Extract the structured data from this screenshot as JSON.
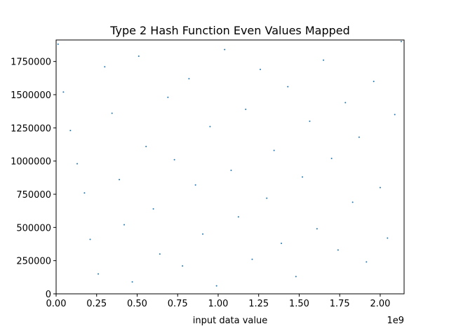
{
  "chart_data": {
    "type": "scatter",
    "title": "Type 2 Hash Function Even Values Mapped",
    "xlabel": "input data value",
    "ylabel": "",
    "x_offset_text": "1e9",
    "xlim": [
      0,
      2147483648
    ],
    "ylim": [
      0,
      1912000
    ],
    "x_ticks": [
      {
        "value": 0,
        "label": "0.00"
      },
      {
        "value": 250000000,
        "label": "0.25"
      },
      {
        "value": 500000000,
        "label": "0.50"
      },
      {
        "value": 750000000,
        "label": "0.75"
      },
      {
        "value": 1000000000,
        "label": "1.00"
      },
      {
        "value": 1250000000,
        "label": "1.25"
      },
      {
        "value": 1500000000,
        "label": "1.50"
      },
      {
        "value": 1750000000,
        "label": "1.75"
      },
      {
        "value": 2000000000,
        "label": "2.00"
      }
    ],
    "y_ticks": [
      {
        "value": 0,
        "label": "0"
      },
      {
        "value": 250000,
        "label": "250000"
      },
      {
        "value": 500000,
        "label": "500000"
      },
      {
        "value": 750000,
        "label": "750000"
      },
      {
        "value": 1000000,
        "label": "1000000"
      },
      {
        "value": 1250000,
        "label": "1250000"
      },
      {
        "value": 1500000,
        "label": "1500000"
      },
      {
        "value": 1750000,
        "label": "1750000"
      }
    ],
    "grid": false,
    "marker_color": "#1f77b4",
    "series": [
      {
        "points": [
          [
            12000000,
            1880000
          ],
          [
            45000000,
            1520000
          ],
          [
            88000000,
            1230000
          ],
          [
            130000000,
            980000
          ],
          [
            175000000,
            760000
          ],
          [
            210000000,
            410000
          ],
          [
            260000000,
            150000
          ],
          [
            300000000,
            1710000
          ],
          [
            345000000,
            1360000
          ],
          [
            390000000,
            860000
          ],
          [
            420000000,
            520000
          ],
          [
            470000000,
            90000
          ],
          [
            510000000,
            1790000
          ],
          [
            555000000,
            1110000
          ],
          [
            600000000,
            640000
          ],
          [
            640000000,
            300000
          ],
          [
            690000000,
            1480000
          ],
          [
            730000000,
            1010000
          ],
          [
            780000000,
            210000
          ],
          [
            820000000,
            1620000
          ],
          [
            860000000,
            820000
          ],
          [
            905000000,
            450000
          ],
          [
            950000000,
            1260000
          ],
          [
            990000000,
            60000
          ],
          [
            1040000000,
            1840000
          ],
          [
            1080000000,
            930000
          ],
          [
            1125000000,
            580000
          ],
          [
            1170000000,
            1390000
          ],
          [
            1210000000,
            260000
          ],
          [
            1260000000,
            1690000
          ],
          [
            1300000000,
            720000
          ],
          [
            1345000000,
            1080000
          ],
          [
            1390000000,
            380000
          ],
          [
            1430000000,
            1560000
          ],
          [
            1480000000,
            130000
          ],
          [
            1520000000,
            880000
          ],
          [
            1565000000,
            1300000
          ],
          [
            1610000000,
            490000
          ],
          [
            1650000000,
            1760000
          ],
          [
            1700000000,
            1020000
          ],
          [
            1740000000,
            330000
          ],
          [
            1785000000,
            1440000
          ],
          [
            1830000000,
            690000
          ],
          [
            1870000000,
            1180000
          ],
          [
            1915000000,
            240000
          ],
          [
            1960000000,
            1600000
          ],
          [
            2000000000,
            800000
          ],
          [
            2045000000,
            420000
          ],
          [
            2090000000,
            1350000
          ],
          [
            2130000000,
            1900000
          ]
        ]
      }
    ]
  }
}
